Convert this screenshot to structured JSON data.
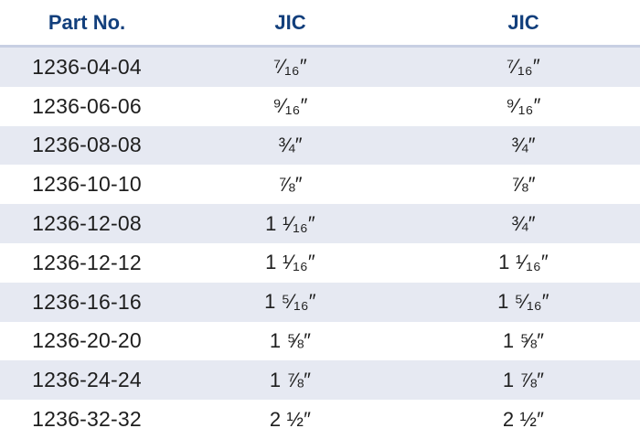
{
  "headers": [
    "Part No.",
    "JIC",
    "JIC"
  ],
  "rows": [
    [
      "1236-04-04",
      "⁷⁄₁₆″",
      "⁷⁄₁₆″"
    ],
    [
      "1236-06-06",
      "⁹⁄₁₆″",
      "⁹⁄₁₆″"
    ],
    [
      "1236-08-08",
      "¾″",
      "¾″"
    ],
    [
      "1236-10-10",
      "⅞″",
      "⅞″"
    ],
    [
      "1236-12-08",
      "1 ¹⁄₁₆″",
      "¾″"
    ],
    [
      "1236-12-12",
      "1 ¹⁄₁₆″",
      "1 ¹⁄₁₆″"
    ],
    [
      "1236-16-16",
      "1 ⁵⁄₁₆″",
      "1 ⁵⁄₁₆″"
    ],
    [
      "1236-20-20",
      "1 ⅝″",
      "1 ⅝″"
    ],
    [
      "1236-24-24",
      "1 ⅞″",
      "1 ⅞″"
    ],
    [
      "1236-32-32",
      "2 ½″",
      "2 ½″"
    ]
  ],
  "colors": {
    "header_text": "#123f7c",
    "row_shade": "#e6e9f2",
    "divider": "#c8cfe3",
    "cell_text": "#1e1e1e"
  }
}
